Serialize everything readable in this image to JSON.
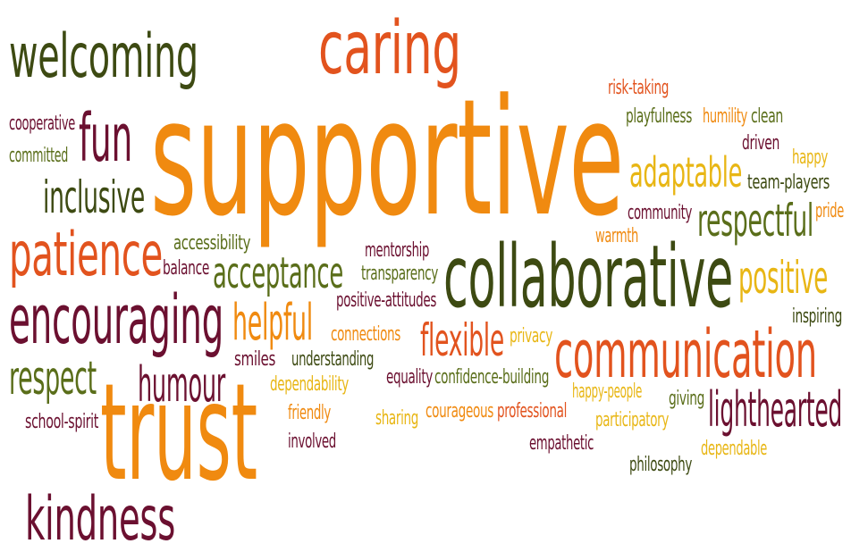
{
  "colors": {
    "dark_olive": "#3d4a12",
    "maroon": "#6b1030",
    "orange": "#f08a10",
    "red_orange": "#e2531e",
    "olive_green": "#5a6e1a",
    "gold": "#e8b614"
  },
  "words": {
    "w01": "welcoming",
    "w02": "caring",
    "w03": "supportive",
    "w04": "risk-taking",
    "w05": "playfulness",
    "w06": "humility",
    "w07": "clean",
    "w08": "cooperative",
    "w09": "fun",
    "w10": "committed",
    "w11": "driven",
    "w12": "happy",
    "w13": "adaptable",
    "w14": "team-players",
    "w15": "inclusive",
    "w16": "community",
    "w17": "respectful",
    "w18": "pride",
    "w19": "patience",
    "w20": "accessibility",
    "w21": "warmth",
    "w22": "mentorship",
    "w23": "balance",
    "w24": "acceptance",
    "w25": "transparency",
    "w26": "collaborative",
    "w27": "positive",
    "w28": "positive-attitudes",
    "w29": "encouraging",
    "w30": "helpful",
    "w31": "inspiring",
    "w32": "connections",
    "w33": "flexible",
    "w34": "privacy",
    "w35": "communication",
    "w36": "respect",
    "w37": "smiles",
    "w38": "understanding",
    "w39": "humour",
    "w40": "dependability",
    "w41": "equality",
    "w42": "confidence-building",
    "w43": "happy-people",
    "w44": "giving",
    "w45": "lighthearted",
    "w46": "school-spirit",
    "w47": "trust",
    "w48": "friendly",
    "w49": "sharing",
    "w50": "courageous",
    "w51": "professional",
    "w52": "participatory",
    "w53": "involved",
    "w54": "empathetic",
    "w55": "dependable",
    "w56": "philosophy",
    "w57": "kindness"
  }
}
